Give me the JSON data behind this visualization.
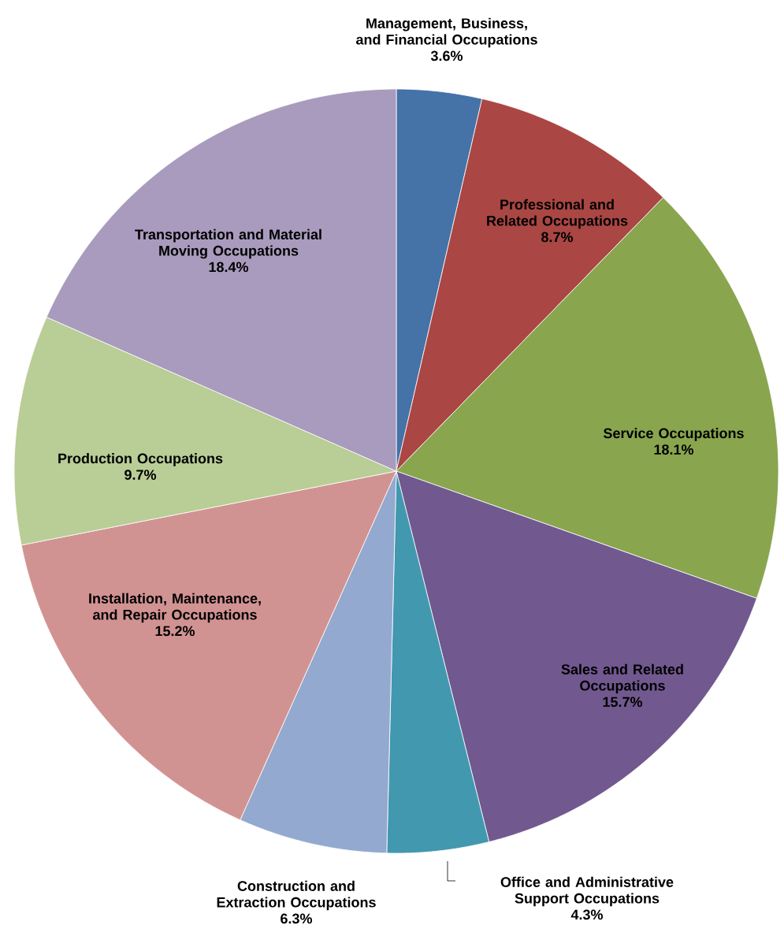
{
  "chart_data": {
    "type": "pie",
    "categories": [
      "Management, Business, and Financial Occupations",
      "Professional and Related Occupations",
      "Service Occupations",
      "Sales and Related Occupations",
      "Office and Administrative Support Occupations",
      "Construction and Extraction Occupations",
      "Installation, Maintenance, and Repair Occupations",
      "Production Occupations",
      "Transportation and Material Moving Occupations"
    ],
    "values": [
      3.6,
      8.7,
      18.1,
      15.7,
      4.3,
      6.3,
      15.2,
      9.7,
      18.4
    ],
    "colors": [
      "#4572a7",
      "#aa4643",
      "#89a54e",
      "#71588f",
      "#4198af",
      "#93a9cf",
      "#d19392",
      "#b9cd96",
      "#a99bbd"
    ],
    "value_labels": [
      "3.6%",
      "8.7%",
      "18.1%",
      "15.7%",
      "4.3%",
      "6.3%",
      "15.2%",
      "9.7%",
      "18.4%"
    ]
  }
}
